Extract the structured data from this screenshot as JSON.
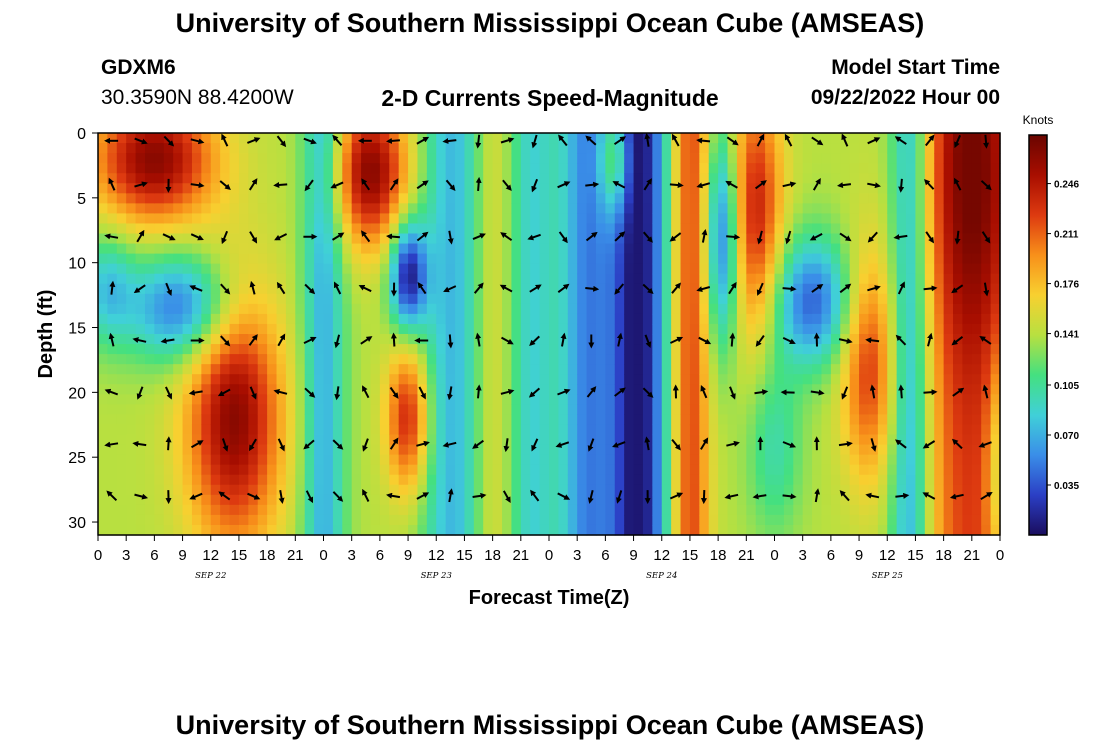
{
  "header": {
    "title": "University of Southern Mississippi Ocean Cube (AMSEAS)",
    "station_id": "GDXM6",
    "station_coords": "30.3590N  88.4200W",
    "chart_title": "2-D Currents Speed-Magnitude",
    "start_label": "Model Start Time",
    "start_value": "09/22/2022 Hour 00"
  },
  "footer": {
    "title_repeat": "University of Southern Mississippi Ocean Cube (AMSEAS)"
  },
  "chart_data": {
    "type": "heatmap",
    "title": "2-D Currents Speed-Magnitude",
    "xlabel": "Forecast Time(Z)",
    "ylabel": "Depth (ft)",
    "x_range_hours": [
      0,
      96
    ],
    "ylim": [
      0,
      31
    ],
    "y_inverted": true,
    "xtick_labels": [
      "0",
      "3",
      "6",
      "9",
      "12",
      "15",
      "18",
      "21",
      "0",
      "3",
      "6",
      "9",
      "12",
      "15",
      "18",
      "21",
      "0",
      "3",
      "6",
      "9",
      "12",
      "15",
      "18",
      "21",
      "0",
      "3",
      "6",
      "9",
      "12",
      "15",
      "18",
      "21",
      "0"
    ],
    "ytick_values": [
      0,
      5,
      10,
      15,
      20,
      25,
      30
    ],
    "day_labels": [
      {
        "label": "SEP 22",
        "hour": 12
      },
      {
        "label": "SEP 23",
        "hour": 36
      },
      {
        "label": "SEP 24",
        "hour": 60
      },
      {
        "label": "SEP 25",
        "hour": 84
      }
    ],
    "colorbar": {
      "unit": "Knots",
      "tick_labels": [
        "0.246",
        "0.211",
        "0.176",
        "0.141",
        "0.105",
        "0.070",
        "0.035"
      ],
      "range": [
        0,
        0.28
      ],
      "colors": [
        "#1a0d5e",
        "#2b3fc5",
        "#3a8ee8",
        "#40d0d8",
        "#44e080",
        "#b8e040",
        "#f8d030",
        "#f8901a",
        "#dd3a10",
        "#a80e00",
        "#6a0500"
      ]
    },
    "vector_depths_ft": [
      0,
      4,
      8,
      12,
      16,
      20,
      24,
      28
    ]
  }
}
